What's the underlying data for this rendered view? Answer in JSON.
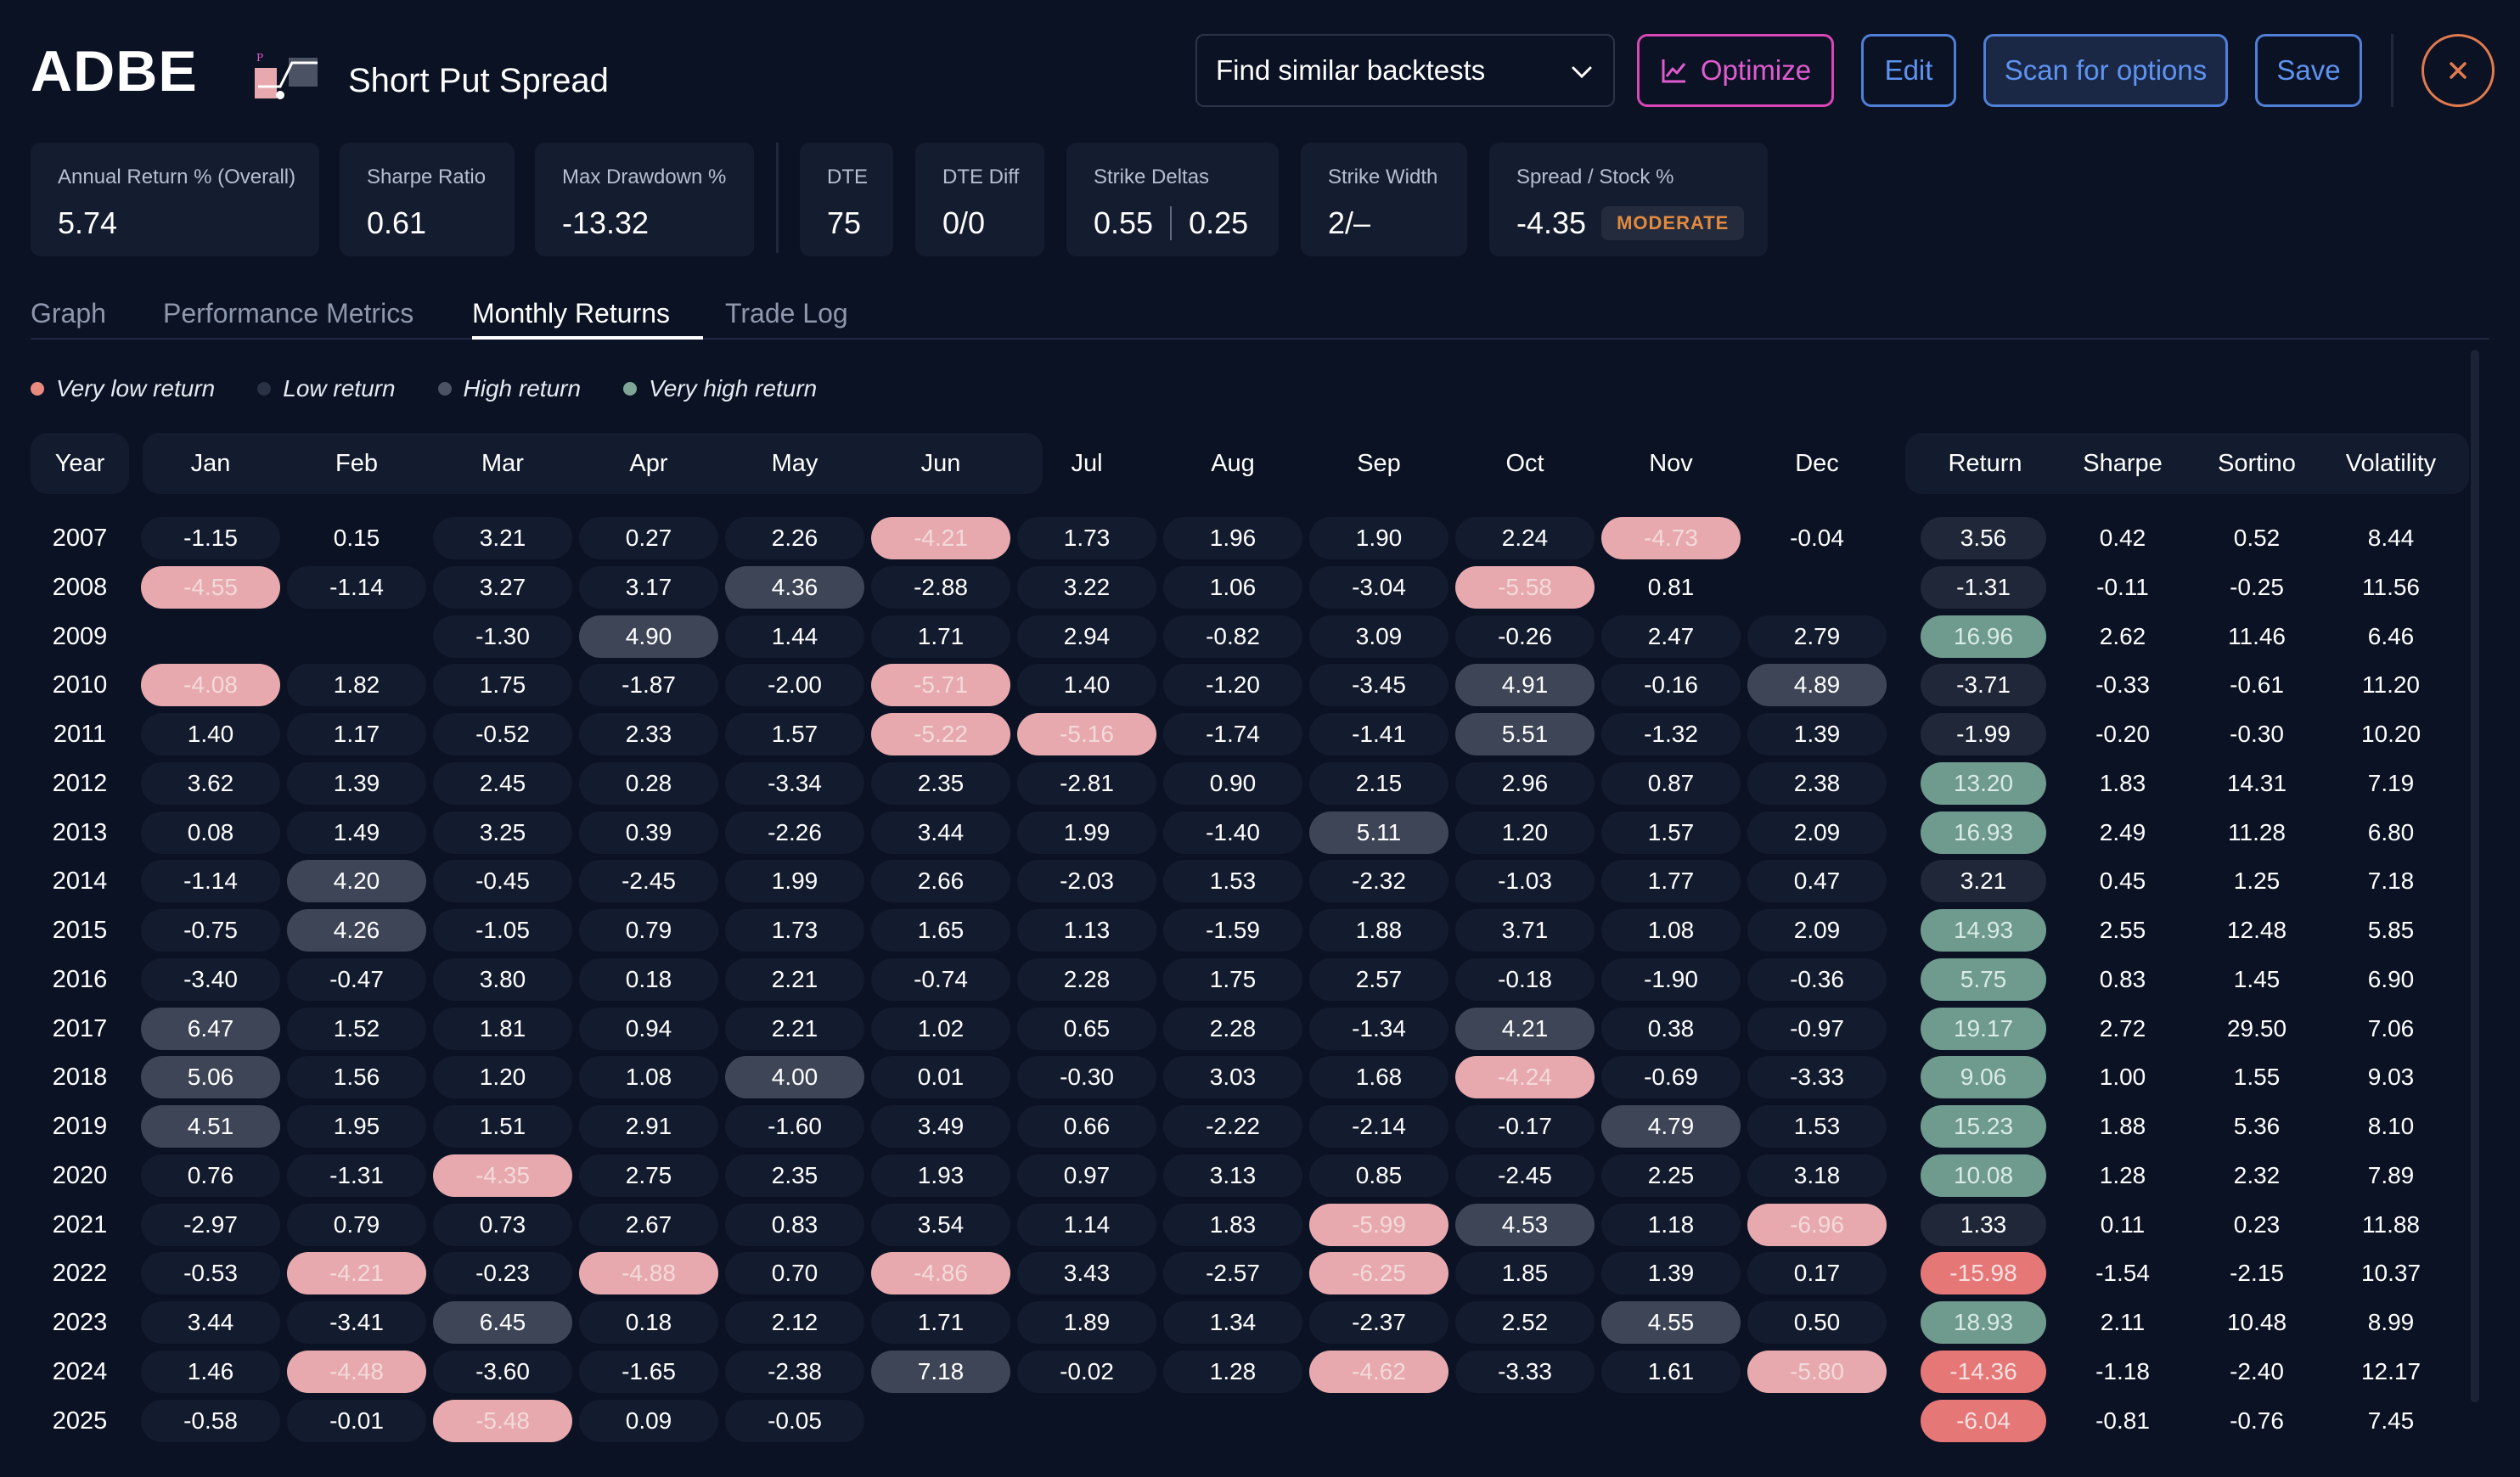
{
  "header": {
    "ticker": "ADBE",
    "strategy": "Short Put Spread",
    "similar_placeholder": "Find similar backtests",
    "optimize_label": "Optimize",
    "edit_label": "Edit",
    "scan_label": "Scan for options",
    "save_label": "Save",
    "icons": {
      "close": "close-icon",
      "chart": "chart-line-icon",
      "chevron": "chevron-down-icon",
      "strategy": "put-spread-icon"
    }
  },
  "stats": [
    {
      "label": "Annual Return % (Overall)",
      "value": "5.74"
    },
    {
      "label": "Sharpe Ratio",
      "value": "0.61"
    },
    {
      "label": "Max Drawdown %",
      "value": "-13.32"
    },
    {
      "label": "DTE",
      "value": "75"
    },
    {
      "label": "DTE Diff",
      "value": "0/0"
    },
    {
      "label": "Strike Deltas",
      "value": "0.55",
      "value2": "0.25"
    },
    {
      "label": "Strike Width",
      "value": "2/–"
    },
    {
      "label": "Spread / Stock %",
      "value": "-4.35",
      "badge": "MODERATE"
    }
  ],
  "tabs": [
    "Graph",
    "Performance Metrics",
    "Monthly Returns",
    "Trade Log"
  ],
  "active_tab": "Monthly Returns",
  "legend": [
    {
      "label": "Very low return",
      "color": "#e88a80"
    },
    {
      "label": "Low return",
      "color": "#2a3245"
    },
    {
      "label": "High return",
      "color": "#4a5264"
    },
    {
      "label": "Very high return",
      "color": "#7fa596"
    }
  ],
  "table": {
    "year_header": "Year",
    "months": [
      "Jan",
      "Feb",
      "Mar",
      "Apr",
      "May",
      "Jun",
      "Jul",
      "Aug",
      "Sep",
      "Oct",
      "Nov",
      "Dec"
    ],
    "summary_headers": [
      "Return",
      "Sharpe",
      "Sortino",
      "Volatility"
    ],
    "rows": [
      {
        "year": "2007",
        "m": [
          "-1.15",
          "0.15",
          "3.21",
          "0.27",
          "2.26",
          "-4.21",
          "1.73",
          "1.96",
          "1.90",
          "2.24",
          "-4.73",
          "-0.04"
        ],
        "c": [
          "n",
          "e",
          "n",
          "n",
          "n",
          "L",
          "n",
          "n",
          "n",
          "n",
          "L",
          "e"
        ],
        "ret": "3.56",
        "rc": "z",
        "sharpe": "0.42",
        "sortino": "0.52",
        "vol": "8.44"
      },
      {
        "year": "2008",
        "m": [
          "-4.55",
          "-1.14",
          "3.27",
          "3.17",
          "4.36",
          "-2.88",
          "3.22",
          "1.06",
          "-3.04",
          "-5.58",
          "0.81",
          ""
        ],
        "c": [
          "L",
          "n",
          "n",
          "n",
          "H",
          "n",
          "n",
          "n",
          "n",
          "L",
          "e",
          "e"
        ],
        "ret": "-1.31",
        "rc": "z",
        "sharpe": "-0.11",
        "sortino": "-0.25",
        "vol": "11.56"
      },
      {
        "year": "2009",
        "m": [
          "",
          "",
          "-1.30",
          "4.90",
          "1.44",
          "1.71",
          "2.94",
          "-0.82",
          "3.09",
          "-0.26",
          "2.47",
          "2.79"
        ],
        "c": [
          "e",
          "e",
          "n",
          "H",
          "n",
          "n",
          "n",
          "n",
          "n",
          "n",
          "n",
          "n"
        ],
        "ret": "16.96",
        "rc": "p",
        "sharpe": "2.62",
        "sortino": "11.46",
        "vol": "6.46"
      },
      {
        "year": "2010",
        "m": [
          "-4.08",
          "1.82",
          "1.75",
          "-1.87",
          "-2.00",
          "-5.71",
          "1.40",
          "-1.20",
          "-3.45",
          "4.91",
          "-0.16",
          "4.89"
        ],
        "c": [
          "L",
          "n",
          "n",
          "n",
          "n",
          "L",
          "n",
          "n",
          "n",
          "H",
          "n",
          "H"
        ],
        "ret": "-3.71",
        "rc": "z",
        "sharpe": "-0.33",
        "sortino": "-0.61",
        "vol": "11.20"
      },
      {
        "year": "2011",
        "m": [
          "1.40",
          "1.17",
          "-0.52",
          "2.33",
          "1.57",
          "-5.22",
          "-5.16",
          "-1.74",
          "-1.41",
          "5.51",
          "-1.32",
          "1.39"
        ],
        "c": [
          "n",
          "n",
          "n",
          "n",
          "n",
          "L",
          "L",
          "n",
          "n",
          "H",
          "n",
          "n"
        ],
        "ret": "-1.99",
        "rc": "z",
        "sharpe": "-0.20",
        "sortino": "-0.30",
        "vol": "10.20"
      },
      {
        "year": "2012",
        "m": [
          "3.62",
          "1.39",
          "2.45",
          "0.28",
          "-3.34",
          "2.35",
          "-2.81",
          "0.90",
          "2.15",
          "2.96",
          "0.87",
          "2.38"
        ],
        "c": [
          "n",
          "n",
          "n",
          "n",
          "n",
          "n",
          "n",
          "n",
          "n",
          "n",
          "n",
          "n"
        ],
        "ret": "13.20",
        "rc": "p",
        "sharpe": "1.83",
        "sortino": "14.31",
        "vol": "7.19"
      },
      {
        "year": "2013",
        "m": [
          "0.08",
          "1.49",
          "3.25",
          "0.39",
          "-2.26",
          "3.44",
          "1.99",
          "-1.40",
          "5.11",
          "1.20",
          "1.57",
          "2.09"
        ],
        "c": [
          "n",
          "n",
          "n",
          "n",
          "n",
          "n",
          "n",
          "n",
          "H",
          "n",
          "n",
          "n"
        ],
        "ret": "16.93",
        "rc": "p",
        "sharpe": "2.49",
        "sortino": "11.28",
        "vol": "6.80"
      },
      {
        "year": "2014",
        "m": [
          "-1.14",
          "4.20",
          "-0.45",
          "-2.45",
          "1.99",
          "2.66",
          "-2.03",
          "1.53",
          "-2.32",
          "-1.03",
          "1.77",
          "0.47"
        ],
        "c": [
          "n",
          "H",
          "n",
          "n",
          "n",
          "n",
          "n",
          "n",
          "n",
          "n",
          "n",
          "n"
        ],
        "ret": "3.21",
        "rc": "z",
        "sharpe": "0.45",
        "sortino": "1.25",
        "vol": "7.18"
      },
      {
        "year": "2015",
        "m": [
          "-0.75",
          "4.26",
          "-1.05",
          "0.79",
          "1.73",
          "1.65",
          "1.13",
          "-1.59",
          "1.88",
          "3.71",
          "1.08",
          "2.09"
        ],
        "c": [
          "n",
          "H",
          "n",
          "n",
          "n",
          "n",
          "n",
          "n",
          "n",
          "n",
          "n",
          "n"
        ],
        "ret": "14.93",
        "rc": "p",
        "sharpe": "2.55",
        "sortino": "12.48",
        "vol": "5.85"
      },
      {
        "year": "2016",
        "m": [
          "-3.40",
          "-0.47",
          "3.80",
          "0.18",
          "2.21",
          "-0.74",
          "2.28",
          "1.75",
          "2.57",
          "-0.18",
          "-1.90",
          "-0.36"
        ],
        "c": [
          "n",
          "n",
          "n",
          "n",
          "n",
          "n",
          "n",
          "n",
          "n",
          "n",
          "n",
          "n"
        ],
        "ret": "5.75",
        "rc": "p",
        "sharpe": "0.83",
        "sortino": "1.45",
        "vol": "6.90"
      },
      {
        "year": "2017",
        "m": [
          "6.47",
          "1.52",
          "1.81",
          "0.94",
          "2.21",
          "1.02",
          "0.65",
          "2.28",
          "-1.34",
          "4.21",
          "0.38",
          "-0.97"
        ],
        "c": [
          "H",
          "n",
          "n",
          "n",
          "n",
          "n",
          "n",
          "n",
          "n",
          "H",
          "n",
          "n"
        ],
        "ret": "19.17",
        "rc": "p",
        "sharpe": "2.72",
        "sortino": "29.50",
        "vol": "7.06"
      },
      {
        "year": "2018",
        "m": [
          "5.06",
          "1.56",
          "1.20",
          "1.08",
          "4.00",
          "0.01",
          "-0.30",
          "3.03",
          "1.68",
          "-4.24",
          "-0.69",
          "-3.33"
        ],
        "c": [
          "H",
          "n",
          "n",
          "n",
          "H",
          "n",
          "n",
          "n",
          "n",
          "L",
          "n",
          "n"
        ],
        "ret": "9.06",
        "rc": "p",
        "sharpe": "1.00",
        "sortino": "1.55",
        "vol": "9.03"
      },
      {
        "year": "2019",
        "m": [
          "4.51",
          "1.95",
          "1.51",
          "2.91",
          "-1.60",
          "3.49",
          "0.66",
          "-2.22",
          "-2.14",
          "-0.17",
          "4.79",
          "1.53"
        ],
        "c": [
          "H",
          "n",
          "n",
          "n",
          "n",
          "n",
          "n",
          "n",
          "n",
          "n",
          "H",
          "n"
        ],
        "ret": "15.23",
        "rc": "p",
        "sharpe": "1.88",
        "sortino": "5.36",
        "vol": "8.10"
      },
      {
        "year": "2020",
        "m": [
          "0.76",
          "-1.31",
          "-4.35",
          "2.75",
          "2.35",
          "1.93",
          "0.97",
          "3.13",
          "0.85",
          "-2.45",
          "2.25",
          "3.18"
        ],
        "c": [
          "n",
          "n",
          "L",
          "n",
          "n",
          "n",
          "n",
          "n",
          "n",
          "n",
          "n",
          "n"
        ],
        "ret": "10.08",
        "rc": "p",
        "sharpe": "1.28",
        "sortino": "2.32",
        "vol": "7.89"
      },
      {
        "year": "2021",
        "m": [
          "-2.97",
          "0.79",
          "0.73",
          "2.67",
          "0.83",
          "3.54",
          "1.14",
          "1.83",
          "-5.99",
          "4.53",
          "1.18",
          "-6.96"
        ],
        "c": [
          "n",
          "n",
          "n",
          "n",
          "n",
          "n",
          "n",
          "n",
          "L",
          "H",
          "n",
          "L"
        ],
        "ret": "1.33",
        "rc": "z",
        "sharpe": "0.11",
        "sortino": "0.23",
        "vol": "11.88"
      },
      {
        "year": "2022",
        "m": [
          "-0.53",
          "-4.21",
          "-0.23",
          "-4.88",
          "0.70",
          "-4.86",
          "3.43",
          "-2.57",
          "-6.25",
          "1.85",
          "1.39",
          "0.17"
        ],
        "c": [
          "n",
          "L",
          "n",
          "L",
          "n",
          "L",
          "n",
          "n",
          "L",
          "n",
          "n",
          "n"
        ],
        "ret": "-15.98",
        "rc": "m",
        "sharpe": "-1.54",
        "sortino": "-2.15",
        "vol": "10.37"
      },
      {
        "year": "2023",
        "m": [
          "3.44",
          "-3.41",
          "6.45",
          "0.18",
          "2.12",
          "1.71",
          "1.89",
          "1.34",
          "-2.37",
          "2.52",
          "4.55",
          "0.50"
        ],
        "c": [
          "n",
          "n",
          "H",
          "n",
          "n",
          "n",
          "n",
          "n",
          "n",
          "n",
          "H",
          "n"
        ],
        "ret": "18.93",
        "rc": "p",
        "sharpe": "2.11",
        "sortino": "10.48",
        "vol": "8.99"
      },
      {
        "year": "2024",
        "m": [
          "1.46",
          "-4.48",
          "-3.60",
          "-1.65",
          "-2.38",
          "7.18",
          "-0.02",
          "1.28",
          "-4.62",
          "-3.33",
          "1.61",
          "-5.80"
        ],
        "c": [
          "n",
          "L",
          "n",
          "n",
          "n",
          "H",
          "n",
          "n",
          "L",
          "n",
          "n",
          "L"
        ],
        "ret": "-14.36",
        "rc": "m",
        "sharpe": "-1.18",
        "sortino": "-2.40",
        "vol": "12.17"
      },
      {
        "year": "2025",
        "m": [
          "-0.58",
          "-0.01",
          "-5.48",
          "0.09",
          "-0.05",
          "",
          "",
          "",
          "",
          "",
          "",
          ""
        ],
        "c": [
          "n",
          "n",
          "L",
          "n",
          "n",
          "e",
          "e",
          "e",
          "e",
          "e",
          "e",
          "e"
        ],
        "ret": "-6.04",
        "rc": "m",
        "sharpe": "-0.81",
        "sortino": "-0.76",
        "vol": "7.45"
      }
    ]
  }
}
